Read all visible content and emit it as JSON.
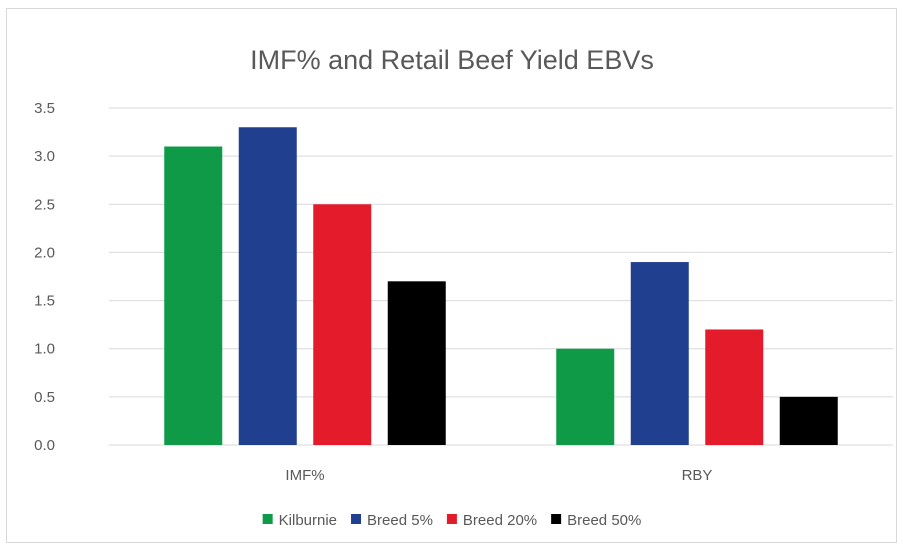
{
  "chart_data": {
    "type": "bar",
    "title": "IMF% and Retail Beef Yield EBVs",
    "xlabel": "",
    "ylabel": "",
    "categories": [
      "IMF%",
      "RBY"
    ],
    "series": [
      {
        "name": "Kilburnie",
        "color": "#0f9a48",
        "values": [
          3.1,
          1.0
        ]
      },
      {
        "name": "Breed 5%",
        "color": "#213f8f",
        "values": [
          3.3,
          1.9
        ]
      },
      {
        "name": "Breed 20%",
        "color": "#e31b2b",
        "values": [
          2.5,
          1.2
        ]
      },
      {
        "name": "Breed 50%",
        "color": "#000000",
        "values": [
          1.7,
          0.5
        ]
      }
    ],
    "ylim": [
      0,
      3.5
    ],
    "yticks": [
      "0.0",
      "0.5",
      "1.0",
      "1.5",
      "2.0",
      "2.5",
      "3.0",
      "3.5"
    ],
    "grid": true,
    "legend": "bottom"
  }
}
